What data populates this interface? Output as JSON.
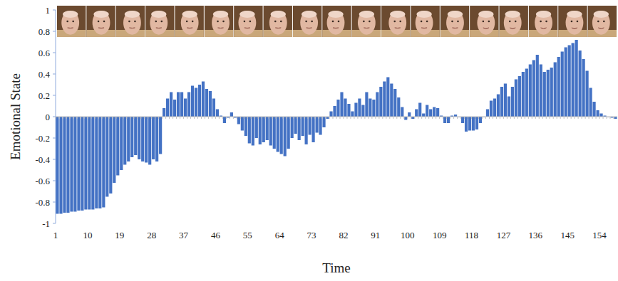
{
  "chart_data": {
    "type": "bar",
    "x_label": "Time",
    "y_label": "Emotional State",
    "color": "#4472c4",
    "categories": [
      1,
      null,
      null,
      null,
      null,
      null,
      null,
      null,
      null,
      10,
      null,
      null,
      null,
      null,
      null,
      null,
      null,
      null,
      19,
      null,
      null,
      null,
      null,
      null,
      null,
      null,
      null,
      28,
      null,
      null,
      null,
      null,
      null,
      null,
      null,
      null,
      37,
      null,
      null,
      null,
      null,
      null,
      null,
      null,
      null,
      46,
      null,
      null,
      null,
      null,
      null,
      null,
      null,
      null,
      55,
      null,
      null,
      null,
      null,
      null,
      null,
      null,
      null,
      64,
      null,
      null,
      null,
      null,
      null,
      null,
      null,
      null,
      73,
      null,
      null,
      null,
      null,
      null,
      null,
      null,
      null,
      82,
      null,
      null,
      null,
      null,
      null,
      null,
      null,
      null,
      91,
      null,
      null,
      null,
      null,
      null,
      null,
      null,
      null,
      100,
      null,
      null,
      null,
      null,
      null,
      null,
      null,
      null,
      109,
      null,
      null,
      null,
      null,
      null,
      null,
      null,
      null,
      118,
      null,
      null,
      null,
      null,
      null,
      null,
      null,
      null,
      127,
      null,
      null,
      null,
      null,
      null,
      null,
      null,
      null,
      136,
      null,
      null,
      null,
      null,
      null,
      null,
      null,
      null,
      145,
      null,
      null,
      null,
      null,
      null,
      null,
      null,
      null,
      154,
      null,
      null,
      null,
      null
    ],
    "values": [
      -0.91,
      -0.91,
      -0.9,
      -0.9,
      -0.89,
      -0.89,
      -0.88,
      -0.88,
      -0.87,
      -0.87,
      -0.87,
      -0.86,
      -0.86,
      -0.85,
      -0.75,
      -0.72,
      -0.62,
      -0.55,
      -0.5,
      -0.45,
      -0.42,
      -0.38,
      -0.36,
      -0.4,
      -0.42,
      -0.43,
      -0.45,
      -0.4,
      -0.42,
      -0.35,
      0.08,
      0.17,
      0.23,
      0.16,
      0.23,
      0.23,
      0.17,
      0.23,
      0.29,
      0.27,
      0.3,
      0.33,
      0.26,
      0.24,
      0.17,
      0.07,
      0.01,
      -0.06,
      -0.01,
      0.04,
      -0.01,
      -0.07,
      -0.13,
      -0.18,
      -0.25,
      -0.27,
      -0.2,
      -0.26,
      -0.24,
      -0.22,
      -0.27,
      -0.3,
      -0.33,
      -0.35,
      -0.37,
      -0.3,
      -0.2,
      -0.16,
      -0.22,
      -0.18,
      -0.26,
      -0.17,
      -0.24,
      -0.15,
      -0.17,
      -0.1,
      -0.02,
      0.05,
      0.1,
      0.16,
      0.23,
      0.17,
      0.12,
      0.05,
      0.13,
      0.17,
      0.11,
      0.23,
      0.17,
      0.16,
      0.23,
      0.28,
      0.33,
      0.37,
      0.31,
      0.26,
      0.18,
      0.09,
      -0.03,
      0.04,
      -0.02,
      0.07,
      0.13,
      0.03,
      0.11,
      0.07,
      0.09,
      0.08,
      0.01,
      -0.06,
      -0.06,
      0.01,
      0.02,
      0.0,
      -0.06,
      -0.14,
      -0.13,
      -0.13,
      -0.12,
      -0.06,
      0.0,
      0.07,
      0.15,
      0.17,
      0.21,
      0.28,
      0.31,
      0.19,
      0.28,
      0.35,
      0.38,
      0.42,
      0.45,
      0.49,
      0.53,
      0.58,
      0.49,
      0.42,
      0.44,
      0.46,
      0.51,
      0.56,
      0.61,
      0.65,
      0.67,
      0.69,
      0.72,
      0.62,
      0.54,
      0.43,
      0.27,
      0.14,
      0.06,
      0.03,
      0.01,
      0.0,
      -0.01,
      -0.02
    ],
    "ylim": [
      -1,
      1
    ],
    "yticks": [
      -1,
      -0.8,
      -0.6,
      -0.4,
      -0.2,
      0,
      0.2,
      0.4,
      0.6,
      0.8,
      1
    ],
    "grid": false
  }
}
